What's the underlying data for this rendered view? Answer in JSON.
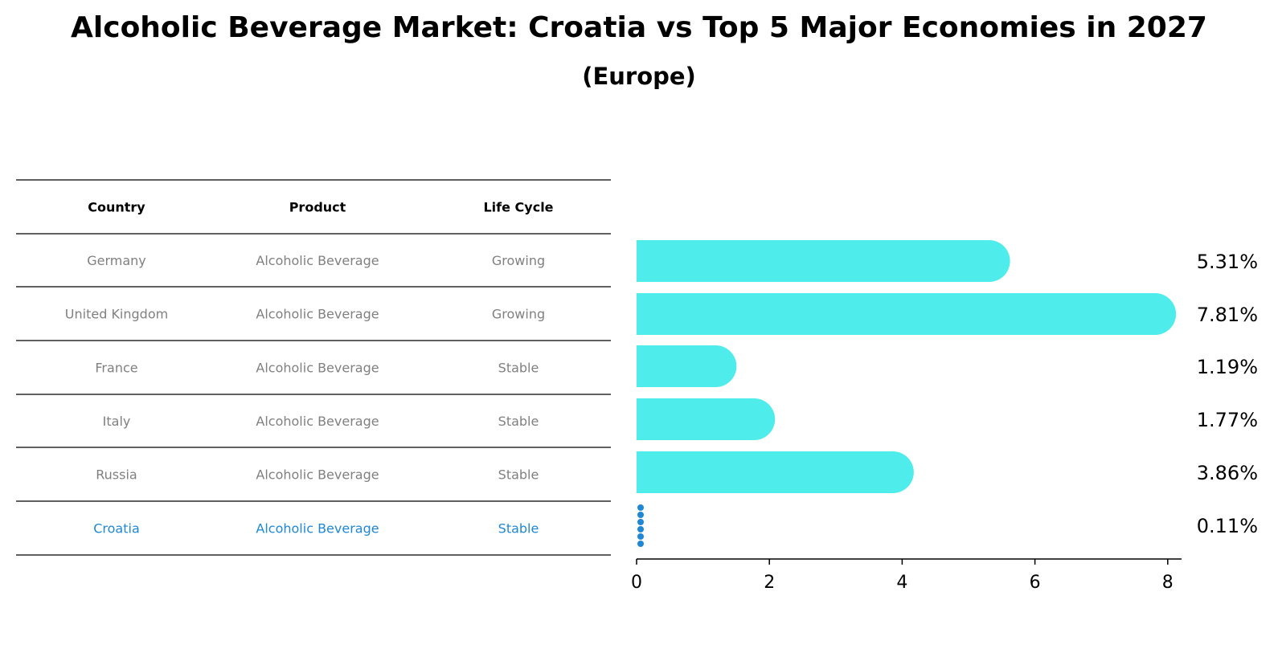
{
  "title": "Alcoholic Beverage Market: Croatia vs Top 5 Major Economies in 2027",
  "subtitle": "(Europe)",
  "table": {
    "headers": [
      "Country",
      "Product",
      "Life Cycle"
    ],
    "rows": [
      [
        "Germany",
        "Alcoholic Beverage",
        "Growing"
      ],
      [
        "United Kingdom",
        "Alcoholic Beverage",
        "Growing"
      ],
      [
        "France",
        "Alcoholic Beverage",
        "Stable"
      ],
      [
        "Italy",
        "Alcoholic Beverage",
        "Stable"
      ],
      [
        "Russia",
        "Alcoholic Beverage",
        "Stable"
      ],
      [
        "Croatia",
        "Alcoholic Beverage",
        "Stable"
      ]
    ],
    "highlight_row": 5
  },
  "colors": {
    "bar": "#4eeceb",
    "highlight": "#1e88d6",
    "text_muted": "#808080"
  },
  "chart_data": {
    "type": "bar",
    "orientation": "horizontal",
    "categories": [
      "Germany",
      "United Kingdom",
      "France",
      "Italy",
      "Russia",
      "Croatia"
    ],
    "values": [
      5.31,
      7.81,
      1.19,
      1.77,
      3.86,
      0.11
    ],
    "data_labels": [
      "5.31%",
      "7.81%",
      "1.19%",
      "1.77%",
      "3.86%",
      "0.11%"
    ],
    "xticks": [
      0,
      2,
      4,
      6,
      8
    ],
    "xlim": [
      0,
      8.2
    ],
    "grid": false
  }
}
